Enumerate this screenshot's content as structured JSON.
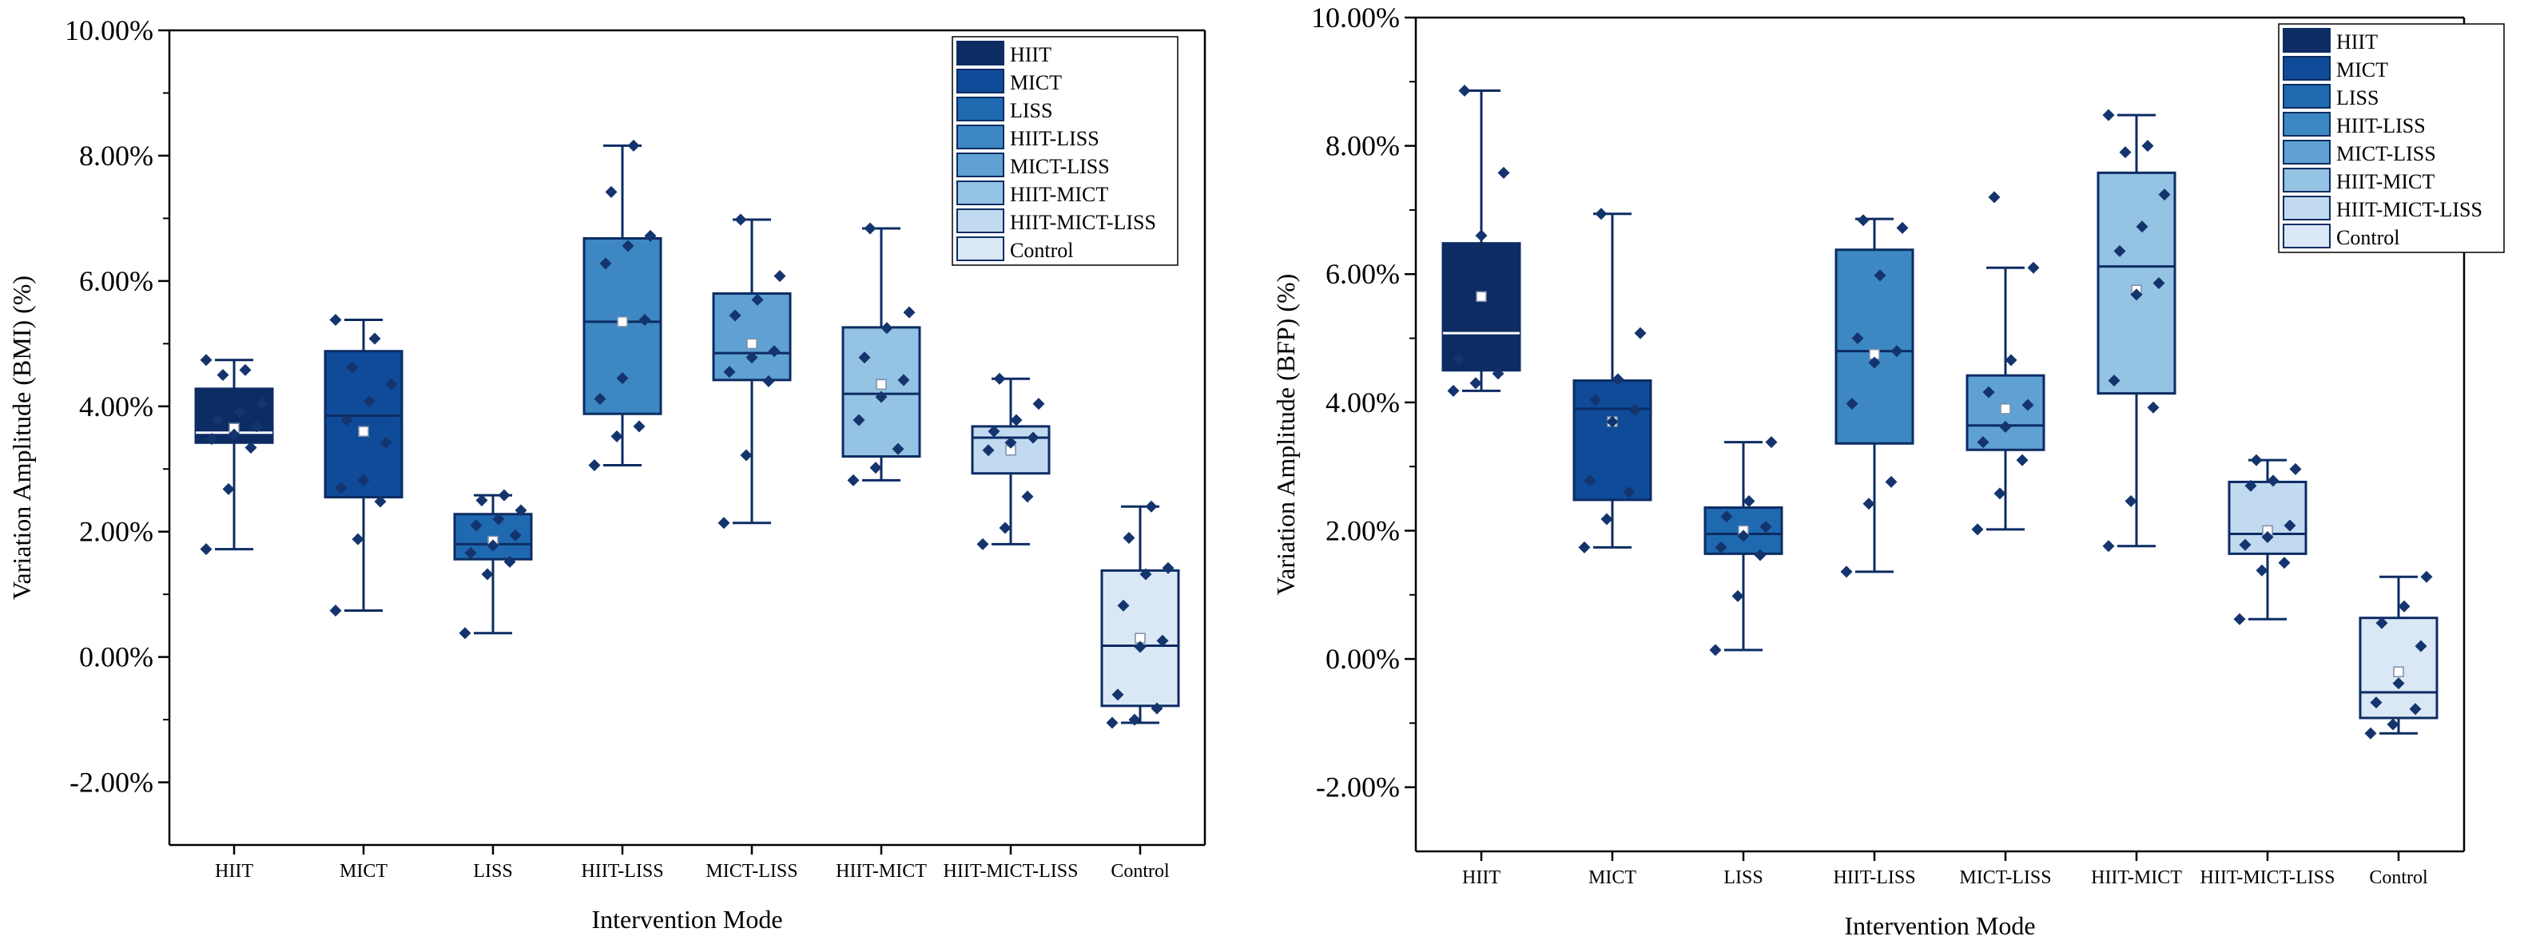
{
  "chart_data": [
    {
      "type": "box",
      "title": "",
      "xlabel": "Intervention Mode",
      "ylabel": "Variation Amplitude (BMI) (%)",
      "ylim": [
        -3,
        10
      ],
      "yticks": [
        "10.00%",
        "8.00%",
        "6.00%",
        "4.00%",
        "2.00%",
        "0.00%",
        "-2.00%"
      ],
      "ytick_values": [
        10,
        8,
        6,
        4,
        2,
        0,
        -2
      ],
      "legend_position": "top-right",
      "categories": [
        "HIIT",
        "MICT",
        "LISS",
        "HIIT-LISS",
        "MICT-LISS",
        "HIIT-MICT",
        "HIIT-MICT-LISS",
        "Control"
      ],
      "colors": [
        "#0c2c63",
        "#0f4b99",
        "#1f69b0",
        "#3d88c2",
        "#5ea1d2",
        "#95c3e3",
        "#c1daf0",
        "#dae8f6"
      ],
      "boxes": [
        {
          "min": 1.72,
          "q1": 3.42,
          "median": 3.58,
          "q3": 4.28,
          "max": 4.74,
          "mean": 3.65,
          "points": [
            1.72,
            2.68,
            3.34,
            3.48,
            3.55,
            3.68,
            3.78,
            3.9,
            4.05,
            4.5,
            4.58,
            4.74
          ]
        },
        {
          "min": 0.74,
          "q1": 2.55,
          "median": 3.85,
          "q3": 4.88,
          "max": 5.38,
          "mean": 3.6,
          "points": [
            0.74,
            1.88,
            2.48,
            2.7,
            2.82,
            3.42,
            3.78,
            4.08,
            4.35,
            4.62,
            5.08,
            5.38
          ]
        },
        {
          "min": 0.38,
          "q1": 1.56,
          "median": 1.8,
          "q3": 2.28,
          "max": 2.58,
          "mean": 1.85,
          "points": [
            0.38,
            1.32,
            1.52,
            1.66,
            1.78,
            1.94,
            2.1,
            2.2,
            2.34,
            2.5,
            2.58
          ]
        },
        {
          "min": 3.06,
          "q1": 3.88,
          "median": 5.35,
          "q3": 6.68,
          "max": 8.16,
          "mean": 5.35,
          "points": [
            3.06,
            3.52,
            3.68,
            4.12,
            4.45,
            5.38,
            6.28,
            6.56,
            6.72,
            7.42,
            8.16
          ]
        },
        {
          "min": 2.14,
          "q1": 4.42,
          "median": 4.85,
          "q3": 5.8,
          "max": 6.98,
          "mean": 5.0,
          "points": [
            2.14,
            3.22,
            4.4,
            4.55,
            4.78,
            4.88,
            5.45,
            5.7,
            6.08,
            6.98
          ]
        },
        {
          "min": 2.82,
          "q1": 3.2,
          "median": 4.2,
          "q3": 5.26,
          "max": 6.84,
          "mean": 4.35,
          "points": [
            2.82,
            3.02,
            3.32,
            3.78,
            4.15,
            4.42,
            4.78,
            5.25,
            5.5,
            6.84
          ]
        },
        {
          "min": 1.8,
          "q1": 2.93,
          "median": 3.5,
          "q3": 3.68,
          "max": 4.44,
          "mean": 3.3,
          "points": [
            1.8,
            2.06,
            2.56,
            3.3,
            3.42,
            3.5,
            3.6,
            3.78,
            4.04,
            4.44
          ]
        },
        {
          "min": -1.05,
          "q1": -0.78,
          "median": 0.18,
          "q3": 1.38,
          "max": 2.4,
          "mean": 0.3,
          "points": [
            -1.05,
            -1.0,
            -0.82,
            -0.6,
            0.16,
            0.26,
            0.82,
            1.32,
            1.42,
            1.9,
            2.4
          ]
        }
      ]
    },
    {
      "type": "box",
      "title": "",
      "xlabel": "Intervention Mode",
      "ylabel": "Variation Amplitude (BFP) (%)",
      "ylim": [
        -3,
        10
      ],
      "yticks": [
        "10.00%",
        "8.00%",
        "6.00%",
        "4.00%",
        "2.00%",
        "0.00%",
        "-2.00%"
      ],
      "ytick_values": [
        10,
        8,
        6,
        4,
        2,
        0,
        -2
      ],
      "legend_position": "top-right",
      "categories": [
        "HIIT",
        "MICT",
        "LISS",
        "HIIT-LISS",
        "MICT-LISS",
        "HIIT-MICT",
        "HIIT-MICT-LISS",
        "Control"
      ],
      "colors": [
        "#0c2c63",
        "#0f4b99",
        "#1f69b0",
        "#3d88c2",
        "#5ea1d2",
        "#95c3e3",
        "#c1daf0",
        "#dae8f6"
      ],
      "boxes": [
        {
          "min": 4.18,
          "q1": 4.5,
          "median": 5.08,
          "q3": 6.48,
          "max": 8.86,
          "mean": 5.65,
          "points": [
            4.18,
            4.3,
            4.45,
            4.68,
            6.6,
            7.58,
            8.86
          ]
        },
        {
          "min": 1.74,
          "q1": 2.48,
          "median": 3.9,
          "q3": 4.34,
          "max": 6.94,
          "mean": 3.7,
          "points": [
            1.74,
            2.18,
            2.6,
            2.78,
            3.7,
            3.88,
            4.04,
            4.36,
            5.08,
            6.94
          ]
        },
        {
          "min": 0.14,
          "q1": 1.64,
          "median": 1.95,
          "q3": 2.36,
          "max": 3.38,
          "mean": 2.0,
          "points": [
            0.14,
            0.98,
            1.62,
            1.74,
            1.92,
            2.06,
            2.22,
            2.46,
            3.38
          ]
        },
        {
          "min": 1.36,
          "q1": 3.36,
          "median": 4.8,
          "q3": 6.38,
          "max": 6.86,
          "mean": 4.75,
          "points": [
            1.36,
            2.42,
            2.76,
            3.98,
            4.62,
            4.8,
            5.0,
            5.98,
            6.72,
            6.84
          ]
        },
        {
          "min": 2.02,
          "q1": 3.26,
          "median": 3.64,
          "q3": 4.42,
          "max": 6.1,
          "mean": 3.9,
          "points": [
            2.02,
            2.58,
            3.1,
            3.38,
            3.62,
            3.96,
            4.16,
            4.66,
            6.1,
            7.2
          ]
        },
        {
          "min": 1.76,
          "q1": 4.14,
          "median": 6.12,
          "q3": 7.58,
          "max": 8.48,
          "mean": 5.75,
          "points": [
            1.76,
            2.46,
            3.92,
            4.34,
            5.68,
            5.86,
            6.36,
            6.74,
            7.24,
            7.9,
            8.0,
            8.48
          ]
        },
        {
          "min": 0.62,
          "q1": 1.64,
          "median": 1.95,
          "q3": 2.76,
          "max": 3.1,
          "mean": 2.0,
          "points": [
            0.62,
            1.38,
            1.5,
            1.78,
            1.9,
            2.08,
            2.7,
            2.78,
            2.96,
            3.1
          ]
        },
        {
          "min": -1.16,
          "q1": -0.92,
          "median": -0.52,
          "q3": 0.64,
          "max": 1.28,
          "mean": -0.2,
          "points": [
            -1.16,
            -1.02,
            -0.78,
            -0.68,
            -0.38,
            0.2,
            0.56,
            0.82,
            1.28
          ]
        }
      ]
    }
  ]
}
